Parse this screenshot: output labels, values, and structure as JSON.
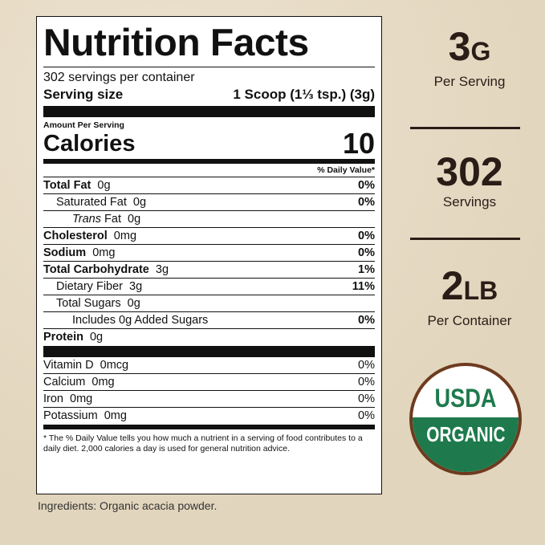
{
  "label": {
    "title": "Nutrition Facts",
    "servings_per_container": "302 servings per container",
    "serving_size_label": "Serving size",
    "serving_size_value": "1 Scoop (1⅓ tsp.) (3g)",
    "amount_per_serving": "Amount Per Serving",
    "calories_label": "Calories",
    "calories_value": "10",
    "daily_value_header": "% Daily Value*",
    "nutrients": [
      {
        "name": "Total Fat",
        "amount": "0g",
        "dv": "0%",
        "bold": true,
        "indent": 0
      },
      {
        "name": "Saturated Fat",
        "amount": "0g",
        "dv": "0%",
        "bold": false,
        "indent": 1
      },
      {
        "name": "Trans",
        "suffix": "Fat",
        "amount": "0g",
        "dv": "",
        "bold": false,
        "indent": 2
      },
      {
        "name": "Cholesterol",
        "amount": "0mg",
        "dv": "0%",
        "bold": true,
        "indent": 0
      },
      {
        "name": "Sodium",
        "amount": "0mg",
        "dv": "0%",
        "bold": true,
        "indent": 0
      },
      {
        "name": "Total Carbohydrate",
        "amount": "3g",
        "dv": "1%",
        "bold": true,
        "indent": 0
      },
      {
        "name": "Dietary Fiber",
        "amount": "3g",
        "dv": "11%",
        "bold": false,
        "indent": 1
      },
      {
        "name": "Total Sugars",
        "amount": "0g",
        "dv": "",
        "bold": false,
        "indent": 1
      },
      {
        "name": "Includes 0g Added Sugars",
        "amount": "",
        "dv": "0%",
        "bold": false,
        "indent": 2
      },
      {
        "name": "Protein",
        "amount": "0g",
        "dv": "",
        "bold": true,
        "indent": 0
      }
    ],
    "vitamins": [
      {
        "name": "Vitamin D",
        "amount": "0mcg",
        "dv": "0%"
      },
      {
        "name": "Calcium",
        "amount": "0mg",
        "dv": "0%"
      },
      {
        "name": "Iron",
        "amount": "0mg",
        "dv": "0%"
      },
      {
        "name": "Potassium",
        "amount": "0mg",
        "dv": "0%"
      }
    ],
    "footnote": "* The % Daily Value tells you how much a nutrient in a serving of food contributes to a daily diet. 2,000 calories a day is used for general nutrition advice."
  },
  "ingredients": "Ingredients: Organic acacia powder.",
  "stats": [
    {
      "value": "3",
      "unit": "G",
      "caption": "Per Serving"
    },
    {
      "value": "302",
      "unit": "",
      "caption": "Servings"
    },
    {
      "value": "2",
      "unit": "LB",
      "caption": "Per Container"
    }
  ],
  "seal": {
    "top": "USDA",
    "bottom": "ORGANIC",
    "green": "#1e7a4c",
    "ring": "#6e3b1f"
  }
}
